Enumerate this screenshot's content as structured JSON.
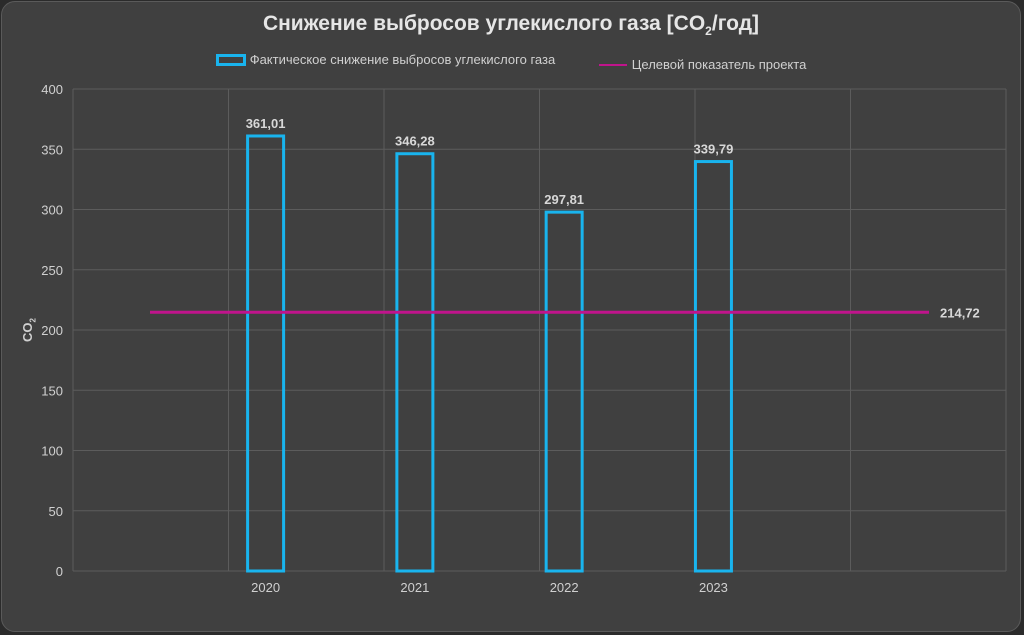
{
  "chart_data": {
    "type": "bar",
    "title": "Снижение выбросов углекислого газа [CO",
    "title_sub": "2",
    "title_suffix": "/год]",
    "categories": [
      "2020",
      "2021",
      "2022",
      "2023"
    ],
    "series": [
      {
        "name": "Фактическое снижение выбросов углекислого газа",
        "values": [
          361.01,
          346.28,
          297.81,
          339.79
        ],
        "labels": [
          "361,01",
          "346,28",
          "297,81",
          "339,79"
        ],
        "color": "#19b4ee"
      },
      {
        "name": "Целевой показатель проекта",
        "type": "line",
        "value": 214.72,
        "label": "214,72",
        "color": "#c0148c"
      }
    ],
    "ylabel": "CO",
    "ylabel_sub": "2",
    "ylim": [
      0,
      400
    ],
    "yticks": [
      "0",
      "50",
      "100",
      "150",
      "200",
      "250",
      "300",
      "350",
      "400"
    ],
    "grid": true,
    "legend_position": "top"
  }
}
